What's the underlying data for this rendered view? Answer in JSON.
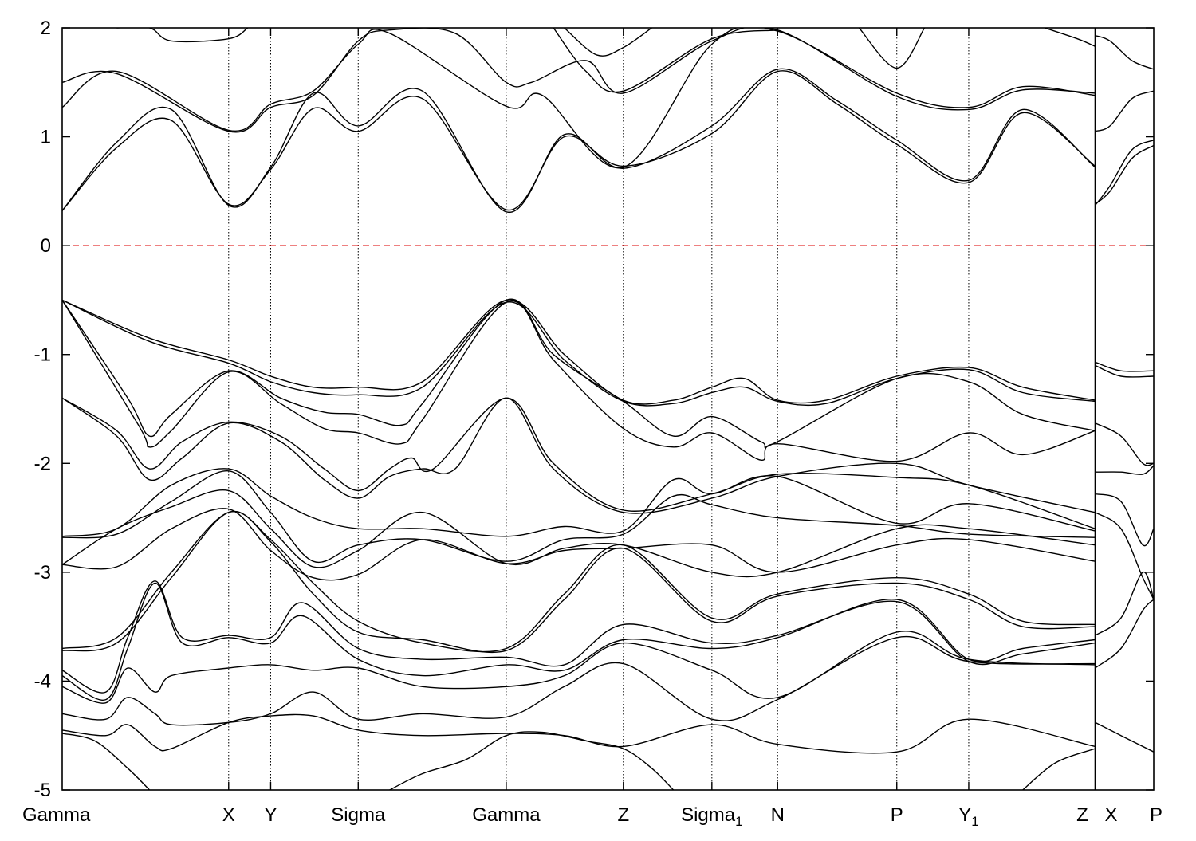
{
  "chart_data": {
    "type": "line",
    "title": "",
    "xlabel": "",
    "ylabel": "",
    "ylim": [
      -5,
      2
    ],
    "yticks": [
      -5,
      -4,
      -3,
      -2,
      -1,
      0,
      1,
      2
    ],
    "grid": false,
    "legend": "none",
    "colors": {
      "bands": "#000000",
      "fermi_level": "#dd0000",
      "kpath_dividers": "#000000",
      "frame": "#000000"
    },
    "kpath": [
      {
        "x": 0.0,
        "label": "Gamma",
        "sub": ""
      },
      {
        "x": 0.1525,
        "label": "X",
        "sub": ""
      },
      {
        "x": 0.191,
        "label": "Y",
        "sub": ""
      },
      {
        "x": 0.2712,
        "label": "Sigma",
        "sub": ""
      },
      {
        "x": 0.4068,
        "label": "Gamma",
        "sub": ""
      },
      {
        "x": 0.5141,
        "label": "Z",
        "sub": ""
      },
      {
        "x": 0.5952,
        "label": "Sigma",
        "sub": "1"
      },
      {
        "x": 0.6554,
        "label": "N",
        "sub": ""
      },
      {
        "x": 0.7646,
        "label": "P",
        "sub": ""
      },
      {
        "x": 0.8305,
        "label": "Y",
        "sub": "1"
      },
      {
        "x": 0.9463,
        "label": "Z",
        "sub": ""
      },
      {
        "x": 1.0,
        "label": "P",
        "sub": ""
      }
    ],
    "break_labels": [
      {
        "x": 0.9463,
        "label": "X",
        "sub": "",
        "offset": "after"
      }
    ],
    "path_break_x": 0.9463,
    "fermi_level": 0,
    "series": [
      {
        "x": [
          0,
          0.05,
          0.1,
          0.1525,
          0.191,
          0.23,
          0.2712,
          0.33,
          0.4068,
          0.46,
          0.5141,
          0.5952,
          0.6554,
          0.71,
          0.7646,
          0.8305,
          0.88,
          0.9463
        ],
        "y": [
          0.32,
          0.9,
          1.15,
          0.38,
          0.7,
          1.26,
          1.05,
          1.35,
          0.33,
          1.0,
          0.73,
          1.03,
          1.6,
          1.3,
          0.93,
          0.58,
          1.22,
          0.73
        ]
      },
      {
        "x": [
          0,
          0.05,
          0.1,
          0.1525,
          0.191,
          0.23,
          0.2712,
          0.33,
          0.4068,
          0.46,
          0.5141,
          0.5952,
          0.6554,
          0.71,
          0.7646,
          0.8305,
          0.88,
          0.9463
        ],
        "y": [
          0.32,
          0.95,
          1.25,
          0.37,
          0.72,
          1.4,
          1.1,
          1.42,
          0.31,
          1.02,
          0.71,
          1.1,
          1.62,
          1.33,
          0.97,
          0.6,
          1.25,
          0.72
        ]
      },
      {
        "x": [
          0,
          0.05,
          0.1525,
          0.191,
          0.23,
          0.2712,
          0.3,
          0.4068,
          0.44,
          0.5141,
          0.5952,
          0.6554,
          0.7646,
          0.8305,
          0.88,
          0.9463
        ],
        "y": [
          1.27,
          1.6,
          1.06,
          1.3,
          1.42,
          1.85,
          1.95,
          1.28,
          1.38,
          0.72,
          1.85,
          1.97,
          1.4,
          1.27,
          1.46,
          1.38
        ]
      },
      {
        "x": [
          0,
          0.05,
          0.1525,
          0.191,
          0.23,
          0.2712,
          0.3,
          0.36,
          0.4068,
          0.43,
          0.48,
          0.5141,
          0.5952,
          0.6554,
          0.7646,
          0.8305,
          0.88,
          0.9463
        ],
        "y": [
          1.5,
          1.58,
          1.05,
          1.27,
          1.38,
          1.88,
          1.98,
          1.95,
          1.5,
          1.5,
          1.7,
          1.4,
          1.88,
          1.98,
          1.37,
          1.25,
          1.43,
          1.4
        ]
      },
      {
        "x": [
          0.05,
          0.08,
          0.1,
          0.1525,
          0.17
        ],
        "y": [
          2.0,
          2.0,
          1.88,
          1.9,
          2.0
        ]
      },
      {
        "x": [
          0.45,
          0.48,
          0.5141,
          0.5952,
          0.6554
        ],
        "y": [
          2.0,
          1.6,
          1.42,
          1.9,
          1.98
        ]
      },
      {
        "x": [
          0.46,
          0.49,
          0.5141,
          0.54
        ],
        "y": [
          2.0,
          1.75,
          1.82,
          2.0
        ]
      },
      {
        "x": [
          0.73,
          0.7646,
          0.79
        ],
        "y": [
          2.0,
          1.63,
          2.0
        ]
      },
      {
        "x": [
          0.9,
          0.93,
          0.9463
        ],
        "y": [
          2.0,
          1.9,
          1.83
        ]
      },
      {
        "x": [
          0,
          0.08,
          0.1525,
          0.191,
          0.23,
          0.2712,
          0.33,
          0.4068,
          0.46,
          0.5141,
          0.56,
          0.5952,
          0.625,
          0.6554,
          0.7,
          0.7646,
          0.8305,
          0.88,
          0.9463
        ],
        "y": [
          -0.5,
          -0.85,
          -1.05,
          -1.2,
          -1.3,
          -1.3,
          -1.25,
          -0.5,
          -1.0,
          -1.42,
          -1.42,
          -1.3,
          -1.22,
          -1.42,
          -1.42,
          -1.2,
          -1.12,
          -1.3,
          -1.42
        ]
      },
      {
        "x": [
          0,
          0.08,
          0.1525,
          0.191,
          0.23,
          0.2712,
          0.33,
          0.4068,
          0.46,
          0.5141,
          0.56,
          0.5952,
          0.625,
          0.6554,
          0.7,
          0.7646,
          0.8305,
          0.88,
          0.9463
        ],
        "y": [
          -0.5,
          -0.88,
          -1.08,
          -1.25,
          -1.35,
          -1.37,
          -1.3,
          -0.52,
          -1.05,
          -1.43,
          -1.45,
          -1.35,
          -1.3,
          -1.43,
          -1.45,
          -1.22,
          -1.14,
          -1.35,
          -1.43
        ]
      },
      {
        "x": [
          0,
          0.06,
          0.08,
          0.1,
          0.1525,
          0.2,
          0.24,
          0.2712,
          0.31,
          0.33,
          0.4068,
          0.45,
          0.5141,
          0.56,
          0.5952,
          0.64,
          0.6554,
          0.7646,
          0.8305,
          0.88,
          0.9463
        ],
        "y": [
          -0.5,
          -1.4,
          -1.75,
          -1.55,
          -1.15,
          -1.4,
          -1.53,
          -1.55,
          -1.65,
          -1.45,
          -0.5,
          -1.0,
          -1.43,
          -1.75,
          -1.57,
          -1.8,
          -1.8,
          -1.22,
          -1.25,
          -1.55,
          -1.7
        ]
      },
      {
        "x": [
          0,
          0.07,
          0.08,
          0.1,
          0.1525,
          0.2,
          0.24,
          0.2712,
          0.31,
          0.33,
          0.4068,
          0.45,
          0.5141,
          0.56,
          0.5952,
          0.64,
          0.6554,
          0.7646,
          0.8305,
          0.88,
          0.9463
        ],
        "y": [
          -0.5,
          -1.65,
          -1.85,
          -1.7,
          -1.16,
          -1.45,
          -1.68,
          -1.72,
          -1.82,
          -1.6,
          -0.52,
          -1.05,
          -1.68,
          -1.85,
          -1.72,
          -1.97,
          -1.82,
          -1.98,
          -1.72,
          -1.92,
          -1.7
        ]
      },
      {
        "x": [
          0,
          0.05,
          0.08,
          0.11,
          0.1525,
          0.2,
          0.24,
          0.2712,
          0.3,
          0.32,
          0.34,
          0.4068,
          0.45,
          0.5141,
          0.5952,
          0.6554,
          0.7646,
          0.8305,
          0.9463
        ],
        "y": [
          -1.4,
          -1.7,
          -2.05,
          -1.8,
          -1.62,
          -1.75,
          -2.05,
          -2.25,
          -2.05,
          -1.95,
          -2.05,
          -1.4,
          -2.0,
          -2.43,
          -2.28,
          -2.1,
          -2.13,
          -2.2,
          -2.6
        ]
      },
      {
        "x": [
          0,
          0.05,
          0.08,
          0.11,
          0.1525,
          0.2,
          0.24,
          0.2712,
          0.3,
          0.33,
          0.36,
          0.4068,
          0.45,
          0.5141,
          0.5952,
          0.6554,
          0.7646,
          0.8305,
          0.9463
        ],
        "y": [
          -1.4,
          -1.75,
          -2.15,
          -1.95,
          -1.63,
          -1.8,
          -2.15,
          -2.32,
          -2.12,
          -2.05,
          -2.05,
          -1.4,
          -2.05,
          -2.45,
          -2.32,
          -2.12,
          -2.0,
          -2.2,
          -2.45
        ]
      },
      {
        "x": [
          0,
          0.05,
          0.1,
          0.1525,
          0.191,
          0.23,
          0.2712,
          0.33,
          0.4068,
          0.46,
          0.5141,
          0.56,
          0.5952,
          0.6554,
          0.7646,
          0.8305,
          0.9463
        ],
        "y": [
          -2.67,
          -2.6,
          -2.2,
          -2.05,
          -2.3,
          -2.5,
          -2.6,
          -2.6,
          -2.67,
          -2.58,
          -2.62,
          -2.15,
          -2.28,
          -2.12,
          -2.55,
          -2.37,
          -2.62
        ]
      },
      {
        "x": [
          0,
          0.05,
          0.1,
          0.1525,
          0.191,
          0.23,
          0.2712,
          0.33,
          0.4068,
          0.46,
          0.5141,
          0.56,
          0.5952,
          0.6554,
          0.7646,
          0.8305,
          0.9463
        ],
        "y": [
          -2.68,
          -2.65,
          -2.35,
          -2.07,
          -2.45,
          -2.9,
          -2.75,
          -2.7,
          -2.9,
          -2.7,
          -2.65,
          -2.3,
          -2.38,
          -2.5,
          -2.57,
          -2.65,
          -2.68
        ]
      },
      {
        "x": [
          0,
          0.05,
          0.1,
          0.1525,
          0.191,
          0.23,
          0.2712,
          0.33,
          0.4068,
          0.46,
          0.5141,
          0.5952,
          0.6554,
          0.7646,
          0.8305,
          0.9463
        ],
        "y": [
          -2.93,
          -2.6,
          -2.4,
          -2.25,
          -2.6,
          -2.95,
          -2.8,
          -2.45,
          -2.92,
          -2.78,
          -2.75,
          -3.0,
          -3.0,
          -2.6,
          -2.6,
          -2.75
        ]
      },
      {
        "x": [
          0,
          0.05,
          0.1,
          0.1525,
          0.191,
          0.23,
          0.2712,
          0.33,
          0.4068,
          0.46,
          0.5141,
          0.5952,
          0.6554,
          0.7646,
          0.8305,
          0.9463
        ],
        "y": [
          -2.93,
          -2.95,
          -2.6,
          -2.42,
          -2.8,
          -3.05,
          -3.02,
          -2.7,
          -2.92,
          -2.8,
          -2.78,
          -2.75,
          -3.0,
          -2.75,
          -2.7,
          -2.9
        ]
      },
      {
        "x": [
          0,
          0.05,
          0.1,
          0.1525,
          0.191,
          0.23,
          0.2712,
          0.33,
          0.4068,
          0.46,
          0.5141,
          0.5952,
          0.6554,
          0.7646,
          0.8305,
          0.88,
          0.9463
        ],
        "y": [
          -3.7,
          -3.6,
          -3.0,
          -2.45,
          -2.7,
          -3.1,
          -3.45,
          -3.65,
          -3.7,
          -3.2,
          -2.75,
          -3.42,
          -3.2,
          -3.05,
          -3.2,
          -3.45,
          -3.48
        ]
      },
      {
        "x": [
          0,
          0.05,
          0.1,
          0.1525,
          0.191,
          0.23,
          0.2712,
          0.33,
          0.4068,
          0.46,
          0.5141,
          0.5952,
          0.6554,
          0.7646,
          0.8305,
          0.88,
          0.9463
        ],
        "y": [
          -3.72,
          -3.65,
          -3.05,
          -2.45,
          -2.72,
          -3.2,
          -3.55,
          -3.62,
          -3.72,
          -3.25,
          -2.78,
          -3.45,
          -3.22,
          -3.1,
          -3.25,
          -3.5,
          -3.5
        ]
      },
      {
        "x": [
          0,
          0.04,
          0.06,
          0.085,
          0.11,
          0.1525,
          0.191,
          0.22,
          0.2712,
          0.33,
          0.4068,
          0.46,
          0.5141,
          0.5952,
          0.6554,
          0.7646,
          0.8305,
          0.88,
          0.9463
        ],
        "y": [
          -3.9,
          -4.1,
          -3.6,
          -3.08,
          -3.6,
          -3.58,
          -3.6,
          -3.28,
          -3.7,
          -3.8,
          -3.78,
          -3.85,
          -3.48,
          -3.65,
          -3.58,
          -3.27,
          -3.82,
          -3.75,
          -3.65
        ]
      },
      {
        "x": [
          0,
          0.04,
          0.06,
          0.085,
          0.11,
          0.1525,
          0.191,
          0.22,
          0.2712,
          0.33,
          0.4068,
          0.46,
          0.5141,
          0.5952,
          0.6554,
          0.7646,
          0.8305,
          0.88,
          0.9463
        ],
        "y": [
          -3.95,
          -4.17,
          -3.7,
          -3.1,
          -3.65,
          -3.6,
          -3.65,
          -3.4,
          -3.8,
          -3.95,
          -3.85,
          -3.9,
          -3.62,
          -3.7,
          -3.6,
          -3.25,
          -3.8,
          -3.7,
          -3.62
        ]
      },
      {
        "x": [
          0,
          0.04,
          0.06,
          0.085,
          0.1,
          0.1525,
          0.191,
          0.23,
          0.2712,
          0.33,
          0.4068,
          0.46,
          0.5141,
          0.5952,
          0.6554,
          0.7646,
          0.8305,
          0.9463
        ],
        "y": [
          -4.05,
          -4.2,
          -3.88,
          -4.1,
          -3.95,
          -3.88,
          -3.85,
          -3.9,
          -3.88,
          -4.05,
          -4.05,
          -3.95,
          -3.65,
          -3.9,
          -4.15,
          -3.55,
          -3.8,
          -3.85
        ]
      },
      {
        "x": [
          0,
          0.04,
          0.06,
          0.085,
          0.1,
          0.1525,
          0.191,
          0.23,
          0.2712,
          0.33,
          0.4068,
          0.46,
          0.5141,
          0.5952,
          0.6554,
          0.7646,
          0.8305,
          0.9463
        ],
        "y": [
          -4.3,
          -4.35,
          -4.15,
          -4.3,
          -4.4,
          -4.38,
          -4.3,
          -4.1,
          -4.35,
          -4.3,
          -4.33,
          -4.05,
          -3.84,
          -4.35,
          -4.17,
          -3.6,
          -3.82,
          -3.84
        ]
      },
      {
        "x": [
          0,
          0.04,
          0.06,
          0.085,
          0.1,
          0.1525,
          0.191,
          0.23,
          0.2712,
          0.33,
          0.4068,
          0.46,
          0.5141,
          0.5952,
          0.6554,
          0.7646,
          0.8305,
          0.9463
        ],
        "y": [
          -4.45,
          -4.5,
          -4.4,
          -4.6,
          -4.62,
          -4.38,
          -4.32,
          -4.32,
          -4.45,
          -4.5,
          -4.48,
          -4.5,
          -4.6,
          -4.4,
          -4.58,
          -4.65,
          -4.35,
          -4.6
        ]
      },
      {
        "x": [
          0,
          0.03,
          0.06,
          0.08
        ],
        "y": [
          -4.48,
          -4.55,
          -4.8,
          -5.0
        ]
      },
      {
        "x": [
          0.3,
          0.33,
          0.37,
          0.4068,
          0.44,
          0.48,
          0.5141,
          0.54,
          0.56
        ],
        "y": [
          -5.0,
          -4.85,
          -4.72,
          -4.5,
          -4.47,
          -4.55,
          -4.62,
          -4.8,
          -5.0
        ]
      },
      {
        "x": [
          0.88,
          0.91,
          0.9463
        ],
        "y": [
          -5.0,
          -4.75,
          -4.62
        ]
      },
      {
        "x": [
          0.9463,
          0.96,
          0.98,
          1.0
        ],
        "y": [
          0.37,
          0.55,
          0.88,
          0.97
        ]
      },
      {
        "x": [
          0.9463,
          0.96,
          0.98,
          1.0
        ],
        "y": [
          0.38,
          0.5,
          0.8,
          0.92
        ]
      },
      {
        "x": [
          0.9463,
          0.96,
          0.98,
          1.0
        ],
        "y": [
          1.05,
          1.1,
          1.35,
          1.42
        ]
      },
      {
        "x": [
          0.9463,
          0.96,
          0.98,
          1.0
        ],
        "y": [
          1.93,
          1.88,
          1.7,
          1.62
        ]
      },
      {
        "x": [
          0.9463,
          0.97,
          1.0
        ],
        "y": [
          -1.07,
          -1.15,
          -1.15
        ]
      },
      {
        "x": [
          0.9463,
          0.97,
          1.0
        ],
        "y": [
          -1.1,
          -1.2,
          -1.2
        ]
      },
      {
        "x": [
          0.9463,
          0.97,
          0.99,
          1.0
        ],
        "y": [
          -1.63,
          -1.75,
          -2.0,
          -2.0
        ]
      },
      {
        "x": [
          0.9463,
          0.97,
          0.99,
          1.0
        ],
        "y": [
          -2.08,
          -2.08,
          -2.1,
          -2.02
        ]
      },
      {
        "x": [
          0.9463,
          0.97,
          0.99,
          1.0
        ],
        "y": [
          -2.28,
          -2.35,
          -2.75,
          -2.6
        ]
      },
      {
        "x": [
          0.9463,
          0.97,
          0.99,
          1.0
        ],
        "y": [
          -2.45,
          -2.6,
          -3.05,
          -3.25
        ]
      },
      {
        "x": [
          0.9463,
          0.97,
          0.99,
          1.0
        ],
        "y": [
          -3.58,
          -3.42,
          -3.0,
          -3.25
        ]
      },
      {
        "x": [
          0.9463,
          0.97,
          0.99,
          1.0
        ],
        "y": [
          -3.88,
          -3.7,
          -3.35,
          -3.25
        ]
      },
      {
        "x": [
          0.9463,
          0.97,
          1.0
        ],
        "y": [
          -4.38,
          -4.5,
          -4.65
        ]
      }
    ]
  }
}
